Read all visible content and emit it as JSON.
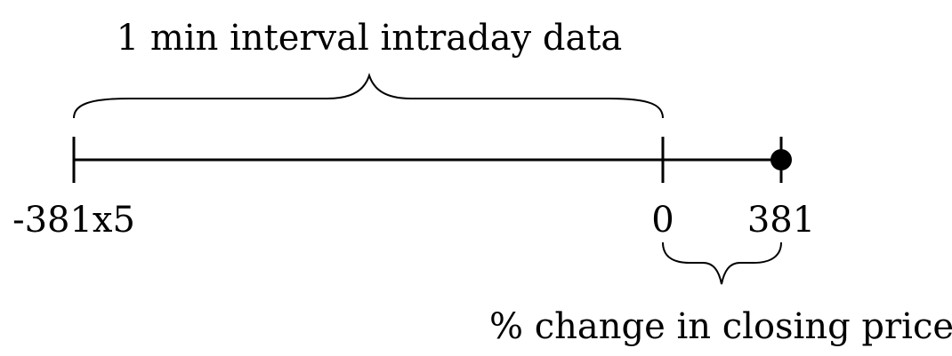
{
  "diagram": {
    "top_brace_label": "1 min interval intraday data",
    "bottom_brace_label": "% change in closing price",
    "ticks": [
      {
        "label": "-381x5"
      },
      {
        "label": "0"
      },
      {
        "label": "381"
      }
    ],
    "endpoint_marker": "filled-circle"
  }
}
